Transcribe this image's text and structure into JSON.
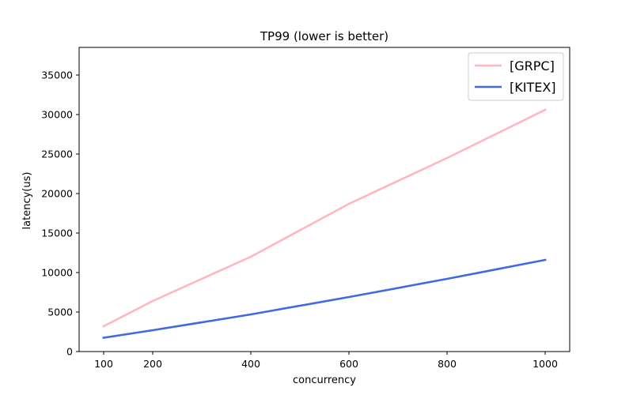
{
  "chart_data": {
    "type": "line",
    "title": "TP99 (lower is better)",
    "xlabel": "concurrency",
    "ylabel": "latency(us)",
    "x": [
      100,
      200,
      400,
      600,
      800,
      1000
    ],
    "series": [
      {
        "name": "[GRPC]",
        "color": "#ffb6c1",
        "values": [
          3200,
          6400,
          12000,
          18700,
          24500,
          30600
        ]
      },
      {
        "name": "[KITEX]",
        "color": "#4169e1",
        "values": [
          1750,
          2700,
          4700,
          6900,
          9200,
          11600
        ]
      }
    ],
    "xlim": [
      50,
      1050
    ],
    "ylim": [
      0,
      38500
    ],
    "xticks": [
      100,
      200,
      400,
      600,
      800,
      1000
    ],
    "yticks": [
      0,
      5000,
      10000,
      15000,
      20000,
      25000,
      30000,
      35000
    ],
    "grid": false,
    "legend_position": "upper right"
  }
}
